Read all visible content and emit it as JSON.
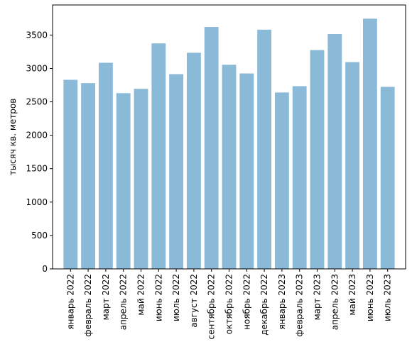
{
  "chart_data": {
    "type": "bar",
    "title": "",
    "xlabel": "",
    "ylabel": "тысяч кв. метров",
    "ylim": [
      0,
      3950
    ],
    "yticks": [
      0,
      500,
      1000,
      1500,
      2000,
      2500,
      3000,
      3500
    ],
    "grid": false,
    "bar_color": "#8bbad9",
    "categories": [
      "январь 2022",
      "февраль 2022",
      "март 2022",
      "апрель 2022",
      "май 2022",
      "июнь 2022",
      "июль 2022",
      "август 2022",
      "сентябрь 2022",
      "октябрь 2022",
      "ноябрь 2022",
      "декабрь 2022",
      "январь 2023",
      "февраль 2023",
      "март 2023",
      "апрель 2023",
      "май 2023",
      "июнь 2023",
      "июль 2023"
    ],
    "values": [
      2830,
      2780,
      3085,
      2630,
      2695,
      3375,
      2915,
      3235,
      3620,
      3055,
      2925,
      3580,
      2640,
      2735,
      3275,
      3515,
      3095,
      3745,
      2725
    ]
  }
}
